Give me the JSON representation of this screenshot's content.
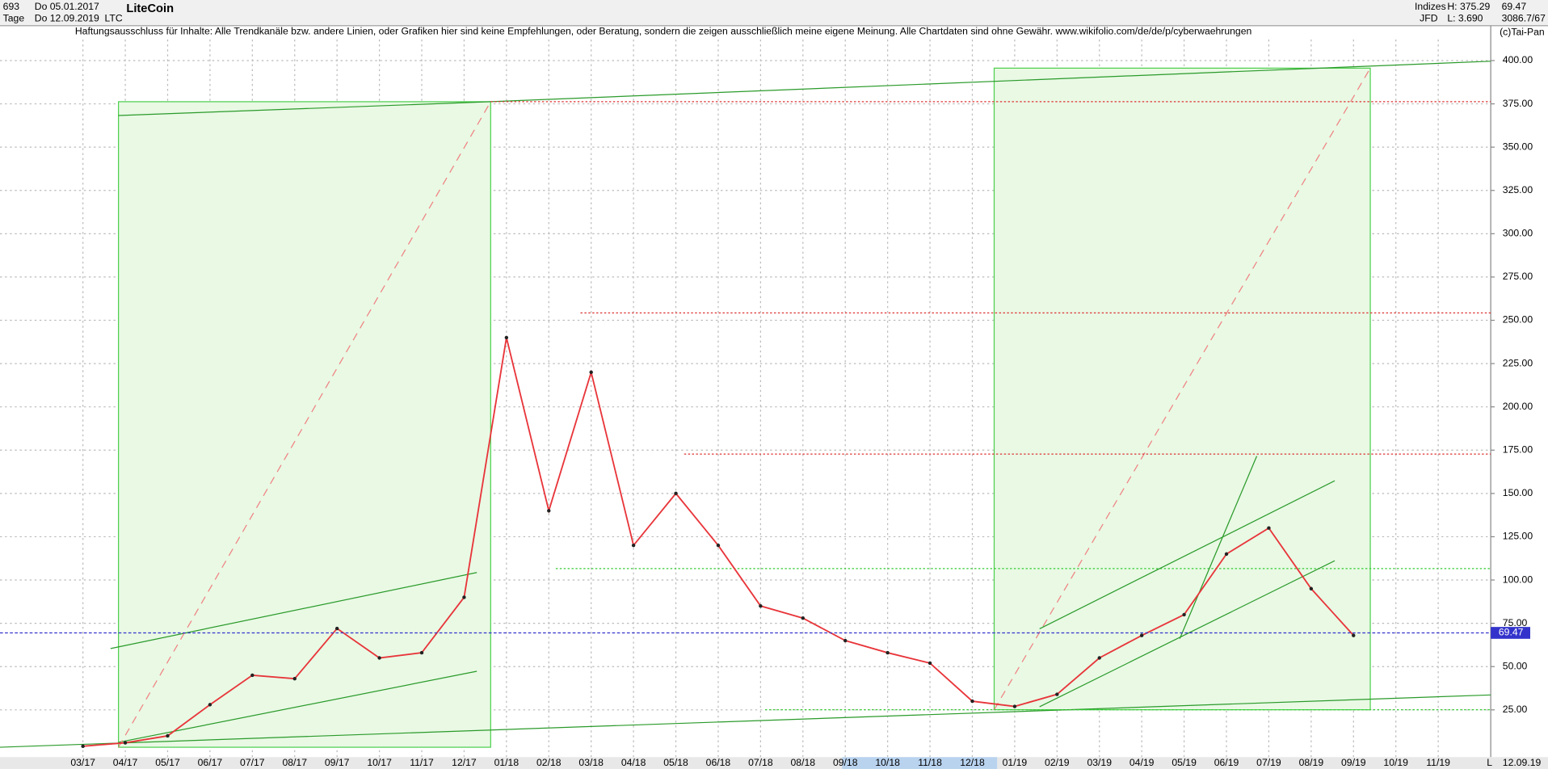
{
  "header": {
    "bar_count": "693",
    "start_date": "Do 05.01.2017",
    "period": "Tage",
    "end_date": "Do 12.09.2019",
    "title": "LiteCoin",
    "symbol": "LTC",
    "disclaimer": "Haftungsausschluss für Inhalte: Alle Trendkanäle bzw. andere Linien, oder Grafiken hier sind keine Empfehlungen, oder Beratung, sondern die zeigen ausschließlich meine eigene Meinung. Alle Chartdaten sind ohne Gewähr.  www.wikifolio.com/de/de/p/cyberwaehrungen",
    "market": "Indizes",
    "high": "H: 375.29",
    "last_text": "69.47",
    "source": "JFD",
    "low": "L: 3.690",
    "extra": "3086.7/67",
    "copyright": "(c)Tai-Pan",
    "footer_date": "12.09.19",
    "footer_flag": "L"
  },
  "chart_data": {
    "type": "line",
    "color": "#e8353a",
    "categories": [
      "03/17",
      "04/17",
      "05/17",
      "06/17",
      "07/17",
      "08/17",
      "09/17",
      "10/17",
      "11/17",
      "12/17",
      "01/18",
      "02/18",
      "03/18",
      "04/18",
      "05/18",
      "06/18",
      "07/18",
      "08/18",
      "09/18",
      "10/18",
      "11/18",
      "12/18",
      "01/19",
      "02/19",
      "03/19",
      "04/19",
      "05/19",
      "06/19",
      "07/19",
      "08/19",
      "09/19",
      "10/19",
      "11/19"
    ],
    "values": [
      4,
      6,
      10,
      28,
      45,
      43,
      72,
      55,
      58,
      90,
      240,
      140,
      220,
      120,
      150,
      120,
      85,
      78,
      65,
      58,
      52,
      30,
      27,
      34,
      55,
      68,
      80,
      115,
      130,
      95,
      68,
      null,
      null
    ],
    "last": {
      "value": 69.47,
      "label": "69.47",
      "color": "#3333cc"
    },
    "ylim": [
      0,
      415
    ],
    "yticks": [
      {
        "value": 25,
        "label": "25.00"
      },
      {
        "value": 50,
        "label": "50.00"
      },
      {
        "value": 75,
        "label": "75.00"
      },
      {
        "value": 100,
        "label": "100.00"
      },
      {
        "value": 125,
        "label": "125.00"
      },
      {
        "value": 150,
        "label": "150.00"
      },
      {
        "value": 175,
        "label": "175.00"
      },
      {
        "value": 200,
        "label": "200.00"
      },
      {
        "value": 225,
        "label": "225.00"
      },
      {
        "value": 250,
        "label": "250.00"
      },
      {
        "value": 275,
        "label": "275.00"
      },
      {
        "value": 300,
        "label": "300.00"
      },
      {
        "value": 325,
        "label": "325.00"
      },
      {
        "value": 350,
        "label": "350.00"
      },
      {
        "value": 375,
        "label": "375.00"
      },
      {
        "value": 400,
        "label": "400.00"
      }
    ],
    "grid": true
  }
}
